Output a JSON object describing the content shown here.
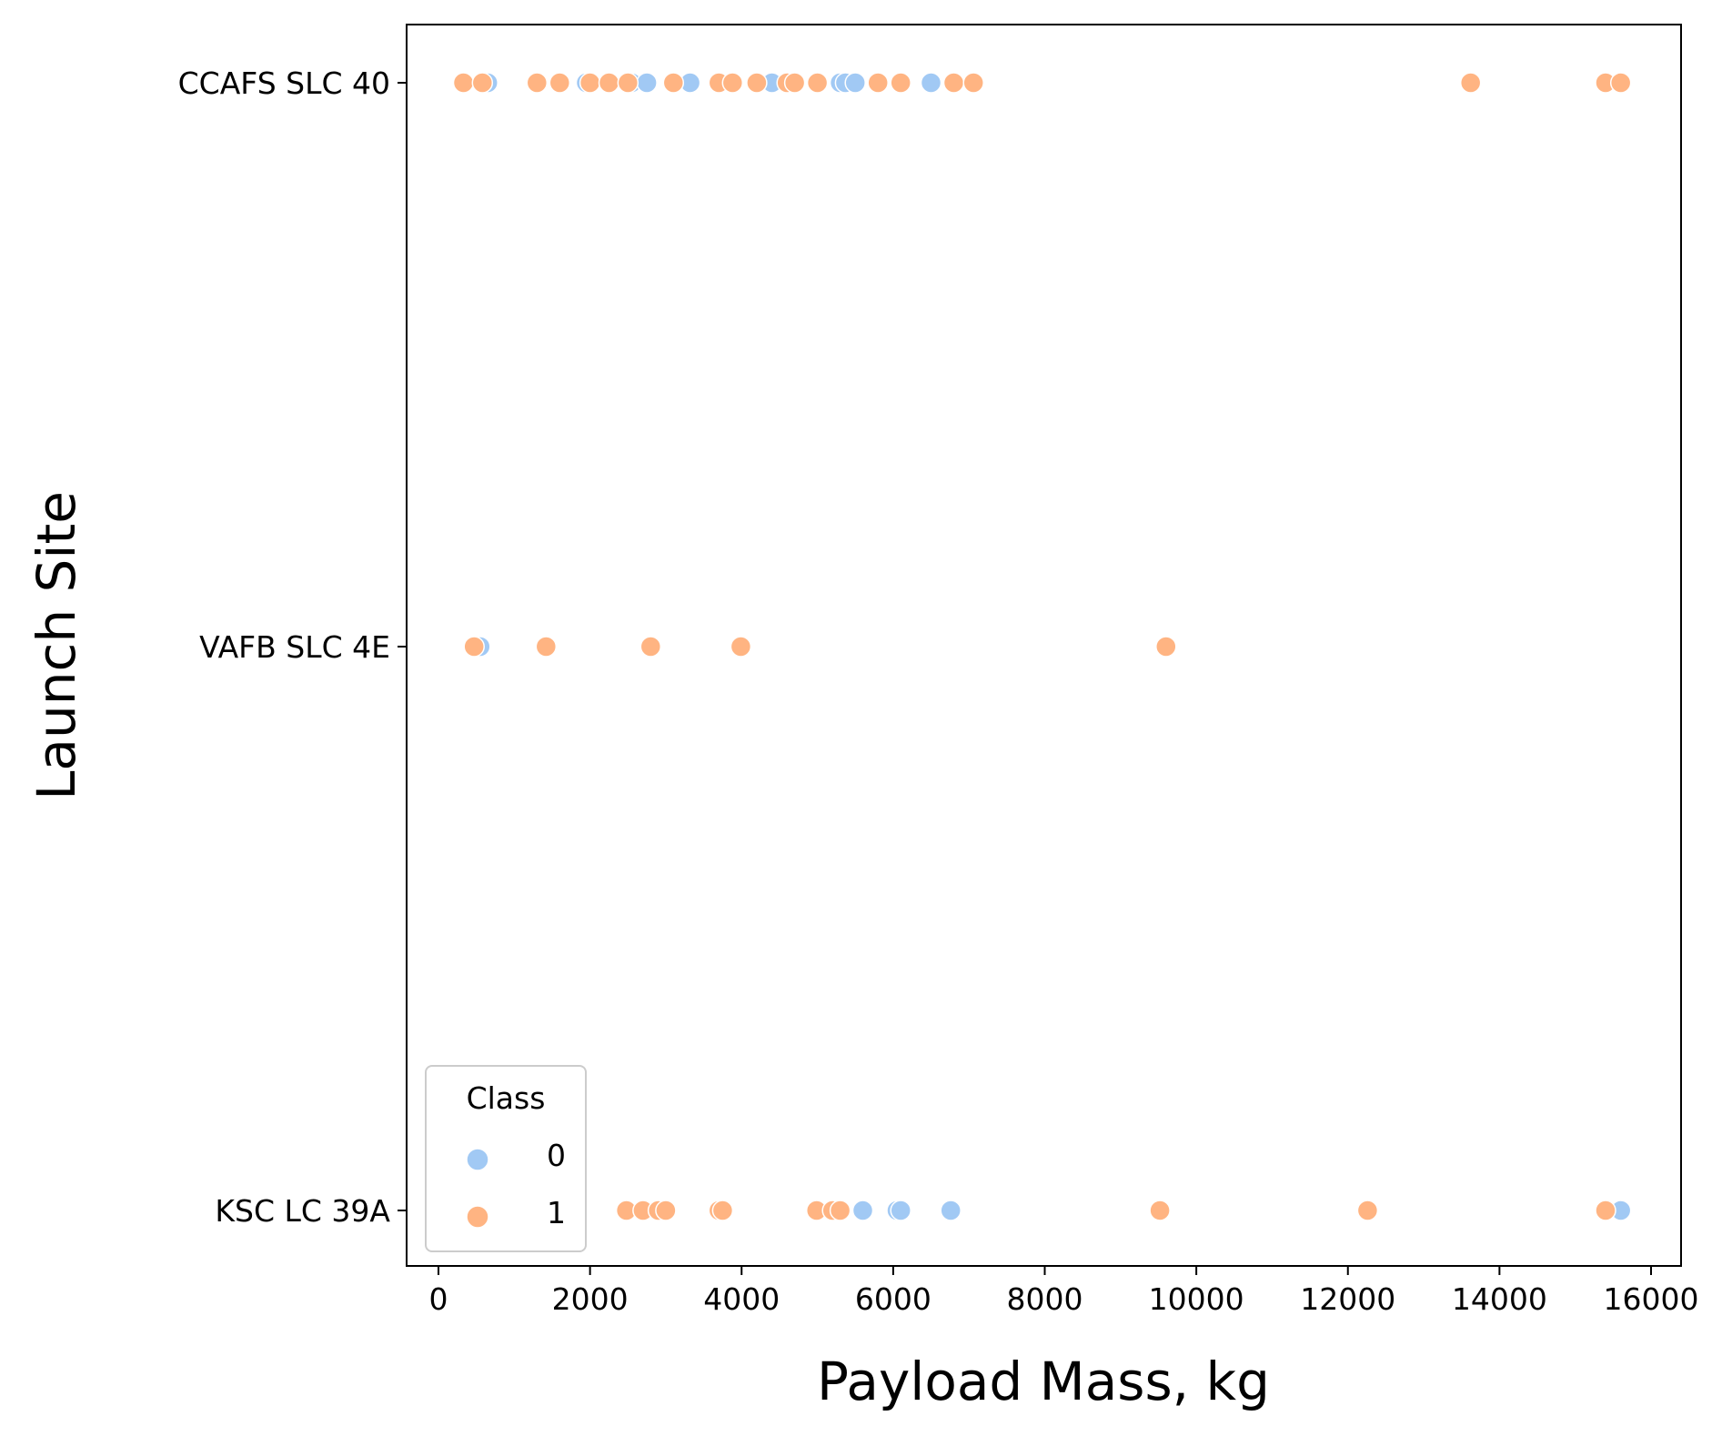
{
  "chart_data": {
    "type": "scatter",
    "xlabel": "Payload Mass, kg",
    "ylabel": "Launch Site",
    "xlim": [
      -400,
      16300
    ],
    "xticks": [
      0,
      2000,
      4000,
      6000,
      8000,
      10000,
      12000,
      14000,
      16000
    ],
    "y_categories": [
      "CCAFS SLC 40",
      "VAFB SLC 4E",
      "KSC LC 39A"
    ],
    "grid": false,
    "legend": {
      "title": "Class",
      "placement": "lower-left",
      "entries": [
        {
          "label": "0",
          "color": "#a1c9f4"
        },
        {
          "label": "1",
          "color": "#ffb482"
        }
      ]
    },
    "series": [
      {
        "class": "0",
        "color": "#a1c9f4",
        "points": [
          {
            "x": 650,
            "site": "CCAFS SLC 40"
          },
          {
            "x": 1950,
            "site": "CCAFS SLC 40"
          },
          {
            "x": 2250,
            "site": "CCAFS SLC 40"
          },
          {
            "x": 2550,
            "site": "CCAFS SLC 40"
          },
          {
            "x": 2750,
            "site": "CCAFS SLC 40"
          },
          {
            "x": 3320,
            "site": "CCAFS SLC 40"
          },
          {
            "x": 4400,
            "site": "CCAFS SLC 40"
          },
          {
            "x": 5300,
            "site": "CCAFS SLC 40"
          },
          {
            "x": 5370,
            "site": "CCAFS SLC 40"
          },
          {
            "x": 5500,
            "site": "CCAFS SLC 40"
          },
          {
            "x": 6500,
            "site": "CCAFS SLC 40"
          },
          {
            "x": 550,
            "site": "VAFB SLC 4E"
          },
          {
            "x": 5600,
            "site": "KSC LC 39A"
          },
          {
            "x": 6050,
            "site": "KSC LC 39A"
          },
          {
            "x": 6100,
            "site": "KSC LC 39A"
          },
          {
            "x": 6760,
            "site": "KSC LC 39A"
          },
          {
            "x": 15600,
            "site": "KSC LC 39A"
          }
        ]
      },
      {
        "class": "1",
        "color": "#ffb482",
        "points": [
          {
            "x": 330,
            "site": "CCAFS SLC 40"
          },
          {
            "x": 580,
            "site": "CCAFS SLC 40"
          },
          {
            "x": 1300,
            "site": "CCAFS SLC 40"
          },
          {
            "x": 1600,
            "site": "CCAFS SLC 40"
          },
          {
            "x": 2000,
            "site": "CCAFS SLC 40"
          },
          {
            "x": 2250,
            "site": "CCAFS SLC 40"
          },
          {
            "x": 2500,
            "site": "CCAFS SLC 40"
          },
          {
            "x": 3100,
            "site": "CCAFS SLC 40"
          },
          {
            "x": 3700,
            "site": "CCAFS SLC 40"
          },
          {
            "x": 3880,
            "site": "CCAFS SLC 40"
          },
          {
            "x": 4200,
            "site": "CCAFS SLC 40"
          },
          {
            "x": 4600,
            "site": "CCAFS SLC 40"
          },
          {
            "x": 4700,
            "site": "CCAFS SLC 40"
          },
          {
            "x": 5000,
            "site": "CCAFS SLC 40"
          },
          {
            "x": 5800,
            "site": "CCAFS SLC 40"
          },
          {
            "x": 6100,
            "site": "CCAFS SLC 40"
          },
          {
            "x": 6800,
            "site": "CCAFS SLC 40"
          },
          {
            "x": 7060,
            "site": "CCAFS SLC 40"
          },
          {
            "x": 13620,
            "site": "CCAFS SLC 40"
          },
          {
            "x": 15400,
            "site": "CCAFS SLC 40"
          },
          {
            "x": 15600,
            "site": "CCAFS SLC 40"
          },
          {
            "x": 470,
            "site": "VAFB SLC 4E"
          },
          {
            "x": 1420,
            "site": "VAFB SLC 4E"
          },
          {
            "x": 2800,
            "site": "VAFB SLC 4E"
          },
          {
            "x": 3990,
            "site": "VAFB SLC 4E"
          },
          {
            "x": 9600,
            "site": "VAFB SLC 4E"
          },
          {
            "x": 2480,
            "site": "KSC LC 39A"
          },
          {
            "x": 2700,
            "site": "KSC LC 39A"
          },
          {
            "x": 2900,
            "site": "KSC LC 39A"
          },
          {
            "x": 3000,
            "site": "KSC LC 39A"
          },
          {
            "x": 3700,
            "site": "KSC LC 39A"
          },
          {
            "x": 3750,
            "site": "KSC LC 39A"
          },
          {
            "x": 4990,
            "site": "KSC LC 39A"
          },
          {
            "x": 5200,
            "site": "KSC LC 39A"
          },
          {
            "x": 5300,
            "site": "KSC LC 39A"
          },
          {
            "x": 9520,
            "site": "KSC LC 39A"
          },
          {
            "x": 12260,
            "site": "KSC LC 39A"
          },
          {
            "x": 15400,
            "site": "KSC LC 39A"
          }
        ]
      }
    ]
  }
}
